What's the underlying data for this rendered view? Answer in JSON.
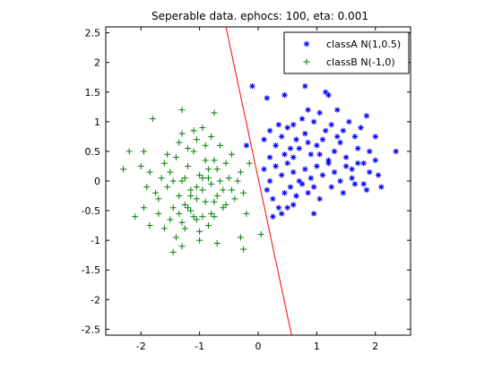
{
  "chart_data": {
    "type": "scatter",
    "title": "Seperable data. ephocs: 100, eta: 0.001",
    "xlabel": "",
    "ylabel": "",
    "xlim": [
      -2.6,
      2.6
    ],
    "ylim": [
      -2.6,
      2.6
    ],
    "xticks": [
      -2,
      -1,
      0,
      1,
      2
    ],
    "yticks": [
      -2.5,
      -2,
      -1.5,
      -1,
      -0.5,
      0,
      0.5,
      1,
      1.5,
      2,
      2.5
    ],
    "xtick_labels": [
      "-2",
      "-1",
      "0",
      "1",
      "2"
    ],
    "ytick_labels": [
      "-2.5",
      "-2",
      "-1.5",
      "-1",
      "-0.5",
      "0",
      "0.5",
      "1",
      "1.5",
      "2",
      "2.5"
    ],
    "grid": false,
    "legend_position": "top-right",
    "series": [
      {
        "name": "classA N(1,0.5)",
        "marker": "asterisk",
        "color": "#0000ff",
        "points": [
          [
            -0.2,
            0.6
          ],
          [
            -0.1,
            1.6
          ],
          [
            0.15,
            1.4
          ],
          [
            0.45,
            1.45
          ],
          [
            0.8,
            1.6
          ],
          [
            1.15,
            1.5
          ],
          [
            1.2,
            1.45
          ],
          [
            1.35,
            1.2
          ],
          [
            1.85,
            1.1
          ],
          [
            2.35,
            0.5
          ],
          [
            0.1,
            0.7
          ],
          [
            0.2,
            0.4
          ],
          [
            0.3,
            0.6
          ],
          [
            0.4,
            0.75
          ],
          [
            0.5,
            0.9
          ],
          [
            0.6,
            0.4
          ],
          [
            0.7,
            0.55
          ],
          [
            0.8,
            0.8
          ],
          [
            0.9,
            0.45
          ],
          [
            1.0,
            0.6
          ],
          [
            1.1,
            0.7
          ],
          [
            1.2,
            0.3
          ],
          [
            1.3,
            0.5
          ],
          [
            1.4,
            0.65
          ],
          [
            1.5,
            0.4
          ],
          [
            1.6,
            0.2
          ],
          [
            1.7,
            0.55
          ],
          [
            1.8,
            0.3
          ],
          [
            1.9,
            0.5
          ],
          [
            2.0,
            0.35
          ],
          [
            0.1,
            0.2
          ],
          [
            0.2,
            0.0
          ],
          [
            0.3,
            0.25
          ],
          [
            0.4,
            0.1
          ],
          [
            0.5,
            0.3
          ],
          [
            0.6,
            0.15
          ],
          [
            0.7,
            0.0
          ],
          [
            0.8,
            0.2
          ],
          [
            0.9,
            0.05
          ],
          [
            1.0,
            0.25
          ],
          [
            1.1,
            0.1
          ],
          [
            1.2,
            0.35
          ],
          [
            1.3,
            0.15
          ],
          [
            1.4,
            0.0
          ],
          [
            1.5,
            0.25
          ],
          [
            1.6,
            0.05
          ],
          [
            1.7,
            0.3
          ],
          [
            1.8,
            -0.05
          ],
          [
            1.9,
            0.15
          ],
          [
            2.05,
            0.1
          ],
          [
            0.15,
            -0.15
          ],
          [
            0.25,
            -0.3
          ],
          [
            0.35,
            -0.45
          ],
          [
            0.45,
            -0.2
          ],
          [
            0.55,
            -0.1
          ],
          [
            0.65,
            -0.25
          ],
          [
            0.75,
            -0.05
          ],
          [
            0.85,
            -0.2
          ],
          [
            0.95,
            -0.1
          ],
          [
            1.05,
            -0.3
          ],
          [
            1.25,
            -0.1
          ],
          [
            1.45,
            -0.2
          ],
          [
            1.65,
            -0.05
          ],
          [
            1.85,
            -0.15
          ],
          [
            2.1,
            -0.1
          ],
          [
            0.25,
            -0.6
          ],
          [
            0.4,
            -0.55
          ],
          [
            0.5,
            -0.45
          ],
          [
            0.6,
            -0.4
          ],
          [
            0.95,
            -0.55
          ],
          [
            0.6,
            0.95
          ],
          [
            0.75,
            1.05
          ],
          [
            0.95,
            1.0
          ],
          [
            1.05,
            1.15
          ],
          [
            1.25,
            0.95
          ],
          [
            1.45,
            0.85
          ],
          [
            1.55,
            1.0
          ],
          [
            0.85,
            1.2
          ],
          [
            0.35,
            0.95
          ],
          [
            0.2,
            0.85
          ],
          [
            0.55,
            0.55
          ],
          [
            0.65,
            0.7
          ],
          [
            0.85,
            0.65
          ],
          [
            1.15,
            0.85
          ],
          [
            1.35,
            0.75
          ],
          [
            1.65,
            0.75
          ],
          [
            1.75,
            0.9
          ],
          [
            2.0,
            0.75
          ],
          [
            0.45,
            0.45
          ],
          [
            1.05,
            0.45
          ]
        ]
      },
      {
        "name": "classB N(-1,0)",
        "marker": "plus",
        "color": "#008000",
        "points": [
          [
            -1.8,
            1.05
          ],
          [
            -1.3,
            1.2
          ],
          [
            -0.75,
            1.15
          ],
          [
            -2.2,
            0.5
          ],
          [
            -2.3,
            0.2
          ],
          [
            -2.0,
            0.25
          ],
          [
            -1.9,
            -0.1
          ],
          [
            -2.1,
            -0.6
          ],
          [
            -1.95,
            -0.45
          ],
          [
            -1.7,
            -0.3
          ],
          [
            -1.6,
            0.3
          ],
          [
            -1.5,
            0.15
          ],
          [
            -1.4,
            0.4
          ],
          [
            -1.3,
            0.0
          ],
          [
            -1.2,
            0.25
          ],
          [
            -1.1,
            0.5
          ],
          [
            -1.0,
            0.1
          ],
          [
            -0.9,
            0.35
          ],
          [
            -0.8,
            -0.05
          ],
          [
            -0.7,
            0.2
          ],
          [
            -0.6,
            -0.15
          ],
          [
            -0.5,
            0.05
          ],
          [
            -0.4,
            -0.3
          ],
          [
            -0.3,
            0.15
          ],
          [
            -0.2,
            -0.55
          ],
          [
            -1.7,
            -0.55
          ],
          [
            -1.6,
            -0.8
          ],
          [
            -1.5,
            -0.65
          ],
          [
            -1.4,
            -0.95
          ],
          [
            -1.3,
            -0.7
          ],
          [
            -1.2,
            -0.45
          ],
          [
            -1.1,
            -0.6
          ],
          [
            -1.0,
            -0.85
          ],
          [
            -0.9,
            -0.35
          ],
          [
            -0.8,
            -0.55
          ],
          [
            -0.7,
            -0.25
          ],
          [
            -0.6,
            -0.45
          ],
          [
            -1.45,
            -1.2
          ],
          [
            -1.0,
            -1.0
          ],
          [
            -0.7,
            -1.05
          ],
          [
            -0.3,
            -0.95
          ],
          [
            0.05,
            -0.9
          ],
          [
            -0.25,
            -1.15
          ],
          [
            -1.3,
            0.8
          ],
          [
            -1.1,
            0.85
          ],
          [
            -0.95,
            0.9
          ],
          [
            -0.8,
            0.75
          ],
          [
            -0.9,
            0.6
          ],
          [
            -1.05,
            0.7
          ],
          [
            -1.2,
            0.55
          ],
          [
            -1.35,
            0.65
          ],
          [
            -0.65,
            0.6
          ],
          [
            -0.55,
            0.3
          ],
          [
            -0.45,
            0.45
          ],
          [
            -1.25,
            0.05
          ],
          [
            -1.15,
            -0.15
          ],
          [
            -1.05,
            -0.3
          ],
          [
            -0.95,
            -0.15
          ],
          [
            -0.85,
            0.05
          ],
          [
            -0.75,
            -0.35
          ],
          [
            -1.55,
            -0.1
          ],
          [
            -1.45,
            0.0
          ],
          [
            -1.35,
            -0.25
          ],
          [
            -1.25,
            -0.4
          ],
          [
            -1.15,
            -0.25
          ],
          [
            -1.05,
            -0.1
          ],
          [
            -0.95,
            0.05
          ],
          [
            -0.85,
            0.2
          ],
          [
            -0.75,
            0.35
          ],
          [
            -0.65,
            0.0
          ],
          [
            -1.65,
            0.05
          ],
          [
            -1.75,
            -0.2
          ],
          [
            -1.85,
            0.15
          ],
          [
            -1.55,
            0.45
          ],
          [
            -1.45,
            -0.45
          ],
          [
            -1.35,
            -0.55
          ],
          [
            -1.25,
            -0.8
          ],
          [
            -1.15,
            -0.5
          ],
          [
            -1.05,
            -0.65
          ],
          [
            -0.95,
            -0.6
          ],
          [
            -0.85,
            -0.75
          ],
          [
            -0.75,
            -0.6
          ],
          [
            -0.55,
            -0.4
          ],
          [
            -0.45,
            -0.15
          ],
          [
            -0.35,
            0.0
          ],
          [
            -0.25,
            -0.2
          ],
          [
            -0.15,
            0.3
          ],
          [
            -1.95,
            0.5
          ],
          [
            -1.85,
            -0.75
          ],
          [
            -1.3,
            -1.1
          ]
        ]
      }
    ],
    "decision_boundary": {
      "color": "#ff0000",
      "points": [
        [
          -0.55,
          2.6
        ],
        [
          0.57,
          -2.6
        ]
      ]
    }
  }
}
